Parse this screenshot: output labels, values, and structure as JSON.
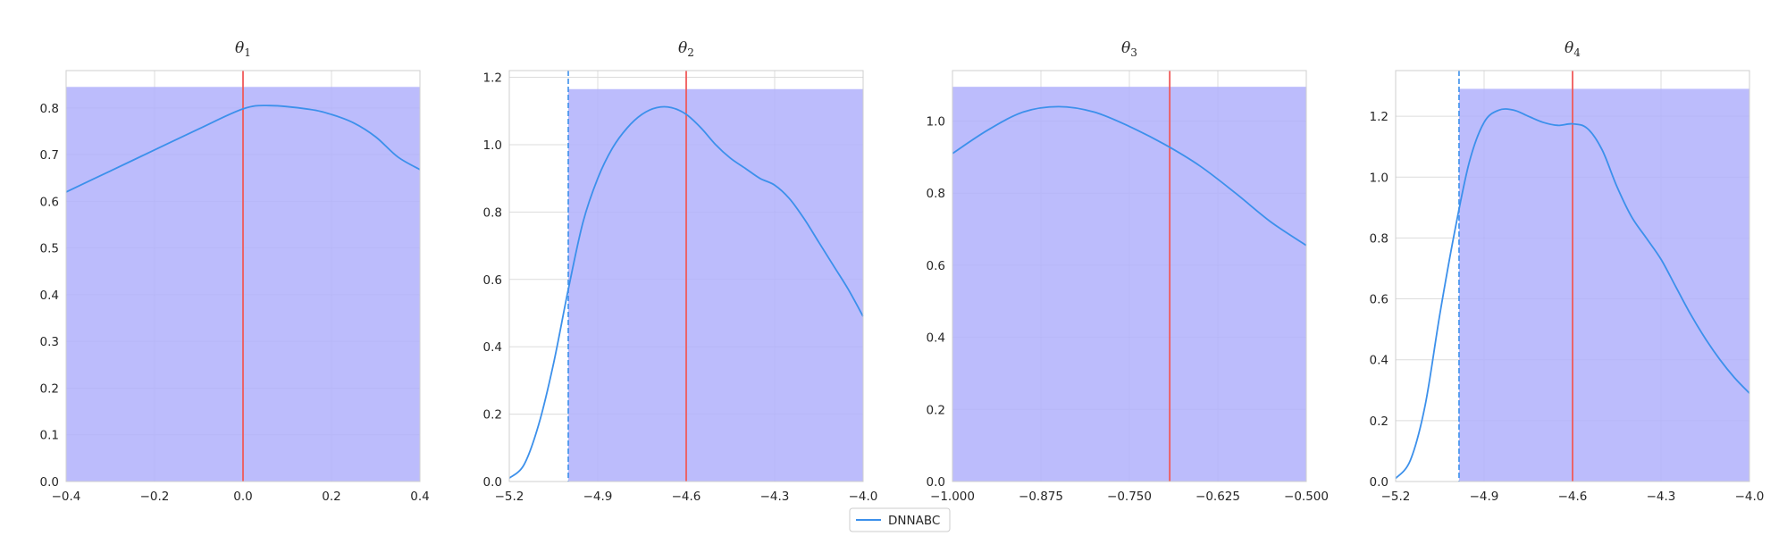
{
  "legend": {
    "label": "DNNABC",
    "color": "#3c90eb"
  },
  "colors": {
    "prior_fill": "#b0b0fc",
    "true_line": "#f05a5a",
    "bound_line": "#3c90eb"
  },
  "chart_data": [
    {
      "type": "line",
      "title": "θ",
      "title_sub": "1",
      "xlim": [
        -0.4,
        0.4
      ],
      "ylim": [
        0,
        0.88
      ],
      "xticks": [
        -0.4,
        -0.2,
        0.0,
        0.2,
        0.4
      ],
      "xtick_labels": [
        "−0.4",
        "−0.2",
        "0.0",
        "0.2",
        "0.4"
      ],
      "yticks": [
        0,
        0.1,
        0.2,
        0.3,
        0.4,
        0.5,
        0.6,
        0.7,
        0.8
      ],
      "ytick_labels": [
        "0.0",
        "0.1",
        "0.2",
        "0.3",
        "0.4",
        "0.5",
        "0.6",
        "0.7",
        "0.8"
      ],
      "prior": {
        "x_min": -0.4,
        "x_max": 0.4,
        "height": 0.845
      },
      "true_value": 0.0,
      "lower_bound": null,
      "series": [
        {
          "name": "DNNABC",
          "x": [
            -0.4,
            -0.3,
            -0.2,
            -0.1,
            0.0,
            0.06,
            0.15,
            0.2,
            0.25,
            0.3,
            0.35,
            0.4
          ],
          "y": [
            0.62,
            0.665,
            0.71,
            0.755,
            0.798,
            0.805,
            0.797,
            0.786,
            0.768,
            0.738,
            0.695,
            0.668
          ]
        }
      ]
    },
    {
      "type": "line",
      "title": "θ",
      "title_sub": "2",
      "xlim": [
        -5.2,
        -4.0
      ],
      "ylim": [
        0,
        1.22
      ],
      "xticks": [
        -5.2,
        -4.9,
        -4.6,
        -4.3,
        -4.0
      ],
      "xtick_labels": [
        "−5.2",
        "−4.9",
        "−4.6",
        "−4.3",
        "−4.0"
      ],
      "yticks": [
        0,
        0.2,
        0.4,
        0.6,
        0.8,
        1.0,
        1.2
      ],
      "ytick_labels": [
        "0.0",
        "0.2",
        "0.4",
        "0.6",
        "0.8",
        "1.0",
        "1.2"
      ],
      "prior": {
        "x_min": -5.0,
        "x_max": -4.0,
        "height": 1.165
      },
      "true_value": -4.6,
      "lower_bound": -5.0,
      "series": [
        {
          "name": "DNNABC",
          "x": [
            -5.2,
            -5.15,
            -5.1,
            -5.05,
            -5.0,
            -4.95,
            -4.9,
            -4.85,
            -4.8,
            -4.75,
            -4.7,
            -4.65,
            -4.6,
            -4.55,
            -4.5,
            -4.45,
            -4.4,
            -4.35,
            -4.3,
            -4.25,
            -4.2,
            -4.15,
            -4.1,
            -4.05,
            -4.0
          ],
          "y": [
            0.01,
            0.05,
            0.17,
            0.35,
            0.57,
            0.77,
            0.9,
            0.99,
            1.05,
            1.09,
            1.11,
            1.11,
            1.09,
            1.05,
            1.0,
            0.96,
            0.93,
            0.9,
            0.88,
            0.84,
            0.78,
            0.71,
            0.64,
            0.57,
            0.49
          ]
        }
      ]
    },
    {
      "type": "line",
      "title": "θ",
      "title_sub": "3",
      "xlim": [
        -1.0,
        -0.5
      ],
      "ylim": [
        0,
        1.14
      ],
      "xticks": [
        -1.0,
        -0.875,
        -0.75,
        -0.625,
        -0.5
      ],
      "xtick_labels": [
        "−1.000",
        "−0.875",
        "−0.750",
        "−0.625",
        "−0.500"
      ],
      "yticks": [
        0,
        0.2,
        0.4,
        0.6,
        0.8,
        1.0
      ],
      "ytick_labels": [
        "0.0",
        "0.2",
        "0.4",
        "0.6",
        "0.8",
        "1.0"
      ],
      "prior": {
        "x_min": -1.0,
        "x_max": -0.5,
        "height": 1.095
      },
      "true_value": -0.693,
      "lower_bound": null,
      "series": [
        {
          "name": "DNNABC",
          "x": [
            -1.0,
            -0.95,
            -0.9,
            -0.85,
            -0.8,
            -0.75,
            -0.7,
            -0.65,
            -0.6,
            -0.55,
            -0.5
          ],
          "y": [
            0.91,
            0.975,
            1.025,
            1.04,
            1.025,
            0.985,
            0.935,
            0.875,
            0.8,
            0.72,
            0.655
          ]
        }
      ]
    },
    {
      "type": "line",
      "title": "θ",
      "title_sub": "4",
      "xlim": [
        -5.2,
        -4.0
      ],
      "ylim": [
        0,
        1.35
      ],
      "xticks": [
        -5.2,
        -4.9,
        -4.6,
        -4.3,
        -4.0
      ],
      "xtick_labels": [
        "−5.2",
        "−4.9",
        "−4.6",
        "−4.3",
        "−4.0"
      ],
      "yticks": [
        0,
        0.2,
        0.4,
        0.6,
        0.8,
        1.0,
        1.2
      ],
      "ytick_labels": [
        "0.0",
        "0.2",
        "0.4",
        "0.6",
        "0.8",
        "1.0",
        "1.2"
      ],
      "prior": {
        "x_min": -4.985,
        "x_max": -4.0,
        "height": 1.29
      },
      "true_value": -4.6,
      "lower_bound": -4.985,
      "series": [
        {
          "name": "DNNABC",
          "x": [
            -5.2,
            -5.15,
            -5.1,
            -5.05,
            -5.0,
            -4.95,
            -4.9,
            -4.85,
            -4.8,
            -4.75,
            -4.7,
            -4.65,
            -4.6,
            -4.55,
            -4.5,
            -4.45,
            -4.4,
            -4.35,
            -4.3,
            -4.25,
            -4.2,
            -4.15,
            -4.1,
            -4.05,
            -4.0
          ],
          "y": [
            0.01,
            0.07,
            0.25,
            0.55,
            0.82,
            1.05,
            1.18,
            1.22,
            1.22,
            1.2,
            1.18,
            1.17,
            1.175,
            1.16,
            1.09,
            0.97,
            0.87,
            0.8,
            0.73,
            0.64,
            0.55,
            0.47,
            0.4,
            0.34,
            0.29
          ]
        }
      ]
    }
  ]
}
